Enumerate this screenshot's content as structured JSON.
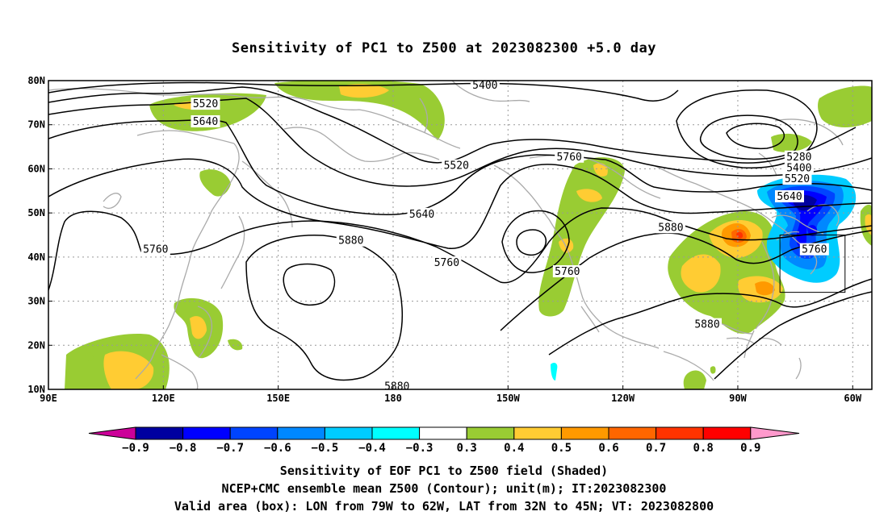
{
  "title": "Sensitivity of PC1 to Z500 at 2023082300 +5.0 day",
  "chart_data": {
    "type": "map",
    "projection": "equirectangular",
    "lon_range": [
      90,
      305
    ],
    "lat_range": [
      10,
      80
    ],
    "lon_ticks": [
      {
        "value": 90,
        "label": "90E"
      },
      {
        "value": 120,
        "label": "120E"
      },
      {
        "value": 150,
        "label": "150E"
      },
      {
        "value": 180,
        "label": "180"
      },
      {
        "value": 210,
        "label": "150W"
      },
      {
        "value": 240,
        "label": "120W"
      },
      {
        "value": 270,
        "label": "90W"
      },
      {
        "value": 300,
        "label": "60W"
      }
    ],
    "lat_ticks": [
      {
        "value": 80,
        "label": "80N"
      },
      {
        "value": 70,
        "label": "70N"
      },
      {
        "value": 60,
        "label": "60N"
      },
      {
        "value": 50,
        "label": "50N"
      },
      {
        "value": 40,
        "label": "40N"
      },
      {
        "value": 30,
        "label": "30N"
      },
      {
        "value": 20,
        "label": "20N"
      },
      {
        "value": 10,
        "label": "10N"
      }
    ],
    "grid": true,
    "contour_labels": [
      {
        "text": "5400",
        "lon": 204,
        "lat": 78.7
      },
      {
        "text": "5520",
        "lon": 131,
        "lat": 74.5
      },
      {
        "text": "5640",
        "lon": 131,
        "lat": 70.5
      },
      {
        "text": "5280",
        "lon": 286,
        "lat": 62.5
      },
      {
        "text": "5400",
        "lon": 286,
        "lat": 60
      },
      {
        "text": "5520",
        "lon": 285.5,
        "lat": 57.5
      },
      {
        "text": "5640",
        "lon": 283.5,
        "lat": 53.5
      },
      {
        "text": "5520",
        "lon": 196.5,
        "lat": 60.5
      },
      {
        "text": "5760",
        "lon": 226,
        "lat": 62.5
      },
      {
        "text": "5640",
        "lon": 187.5,
        "lat": 49.5
      },
      {
        "text": "5880",
        "lon": 169,
        "lat": 43.5
      },
      {
        "text": "5760",
        "lon": 118,
        "lat": 41.5
      },
      {
        "text": "5760",
        "lon": 194,
        "lat": 38.5
      },
      {
        "text": "5760",
        "lon": 225.5,
        "lat": 36.5
      },
      {
        "text": "5880",
        "lon": 252.5,
        "lat": 46.5
      },
      {
        "text": "5760",
        "lon": 290,
        "lat": 41.5
      },
      {
        "text": "5880",
        "lon": 262,
        "lat": 24.5
      },
      {
        "text": "5880",
        "lon": 181,
        "lat": 10.5
      }
    ],
    "valid_area_box": {
      "lon": [
        281,
        298
      ],
      "lat": [
        32,
        45
      ]
    },
    "colorbar": {
      "labels": [
        "-0.9",
        "-0.8",
        "-0.7",
        "-0.6",
        "-0.5",
        "-0.4",
        "-0.3",
        "0.3",
        "0.4",
        "0.5",
        "0.6",
        "0.7",
        "0.8",
        "0.9"
      ],
      "colors": [
        "#0000a0",
        "#0000ff",
        "#0044ff",
        "#0088ff",
        "#00ccff",
        "#00ffff",
        "#ffffff",
        "#99cc33",
        "#ffcc33",
        "#ff9900",
        "#ff6600",
        "#ff3300",
        "#ff0000"
      ],
      "low_end_color": "#cc0099",
      "high_end_color": "#ff99cc"
    }
  },
  "captions": {
    "line1": "Sensitivity of EOF PC1 to Z500 field (Shaded)",
    "line2": "NCEP+CMC ensemble mean Z500 (Contour); unit(m); IT:2023082300",
    "line3": "Valid area (box): LON from 79W to 62W, LAT from 32N to 45N; VT: 2023082800"
  }
}
